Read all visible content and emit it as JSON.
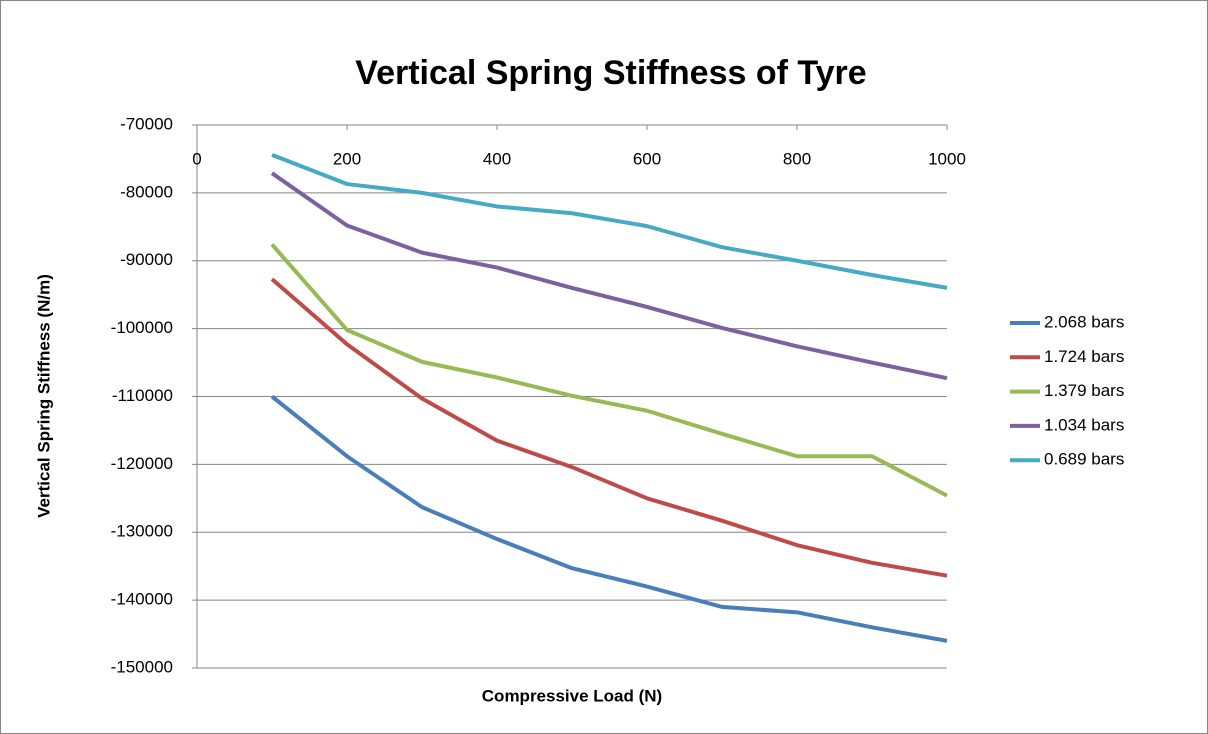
{
  "chart_data": {
    "type": "line",
    "title": "Vertical Spring Stiffness of Tyre",
    "xlabel": "Compressive Load (N)",
    "ylabel": "Vertical Spring Stiffness (N/m)",
    "x": [
      100,
      200,
      300,
      400,
      500,
      600,
      700,
      800,
      900,
      1000
    ],
    "xlim": [
      0,
      1000
    ],
    "xticks": [
      0,
      200,
      400,
      600,
      800,
      1000
    ],
    "ylim": [
      -150000,
      -70000
    ],
    "yticks": [
      -150000,
      -140000,
      -130000,
      -120000,
      -110000,
      -100000,
      -90000,
      -80000,
      -70000
    ],
    "grid": true,
    "legend": "right",
    "series": [
      {
        "name": "2.068 bars",
        "color": "#4a7ebb",
        "values": [
          -110000,
          -118800,
          -126300,
          -131000,
          -135300,
          -138000,
          -141000,
          -141800,
          -144000,
          -146000
        ]
      },
      {
        "name": "1.724 bars",
        "color": "#be4b48",
        "values": [
          -92700,
          -102300,
          -110300,
          -116500,
          -120400,
          -125000,
          -128300,
          -131900,
          -134500,
          -136400
        ]
      },
      {
        "name": "1.379 bars",
        "color": "#98b954",
        "values": [
          -87600,
          -100200,
          -104900,
          -107200,
          -109900,
          -112100,
          -115500,
          -118800,
          -118800,
          -124600
        ]
      },
      {
        "name": "1.034 bars",
        "color": "#7d60a0",
        "values": [
          -77100,
          -84800,
          -88800,
          -91000,
          -94000,
          -96800,
          -99900,
          -102600,
          -105000,
          -107300
        ]
      },
      {
        "name": "0.689 bars",
        "color": "#46aac5",
        "values": [
          -74400,
          -78700,
          -80000,
          -82000,
          -83000,
          -84900,
          -88000,
          -90000,
          -92100,
          -94000
        ]
      }
    ]
  }
}
